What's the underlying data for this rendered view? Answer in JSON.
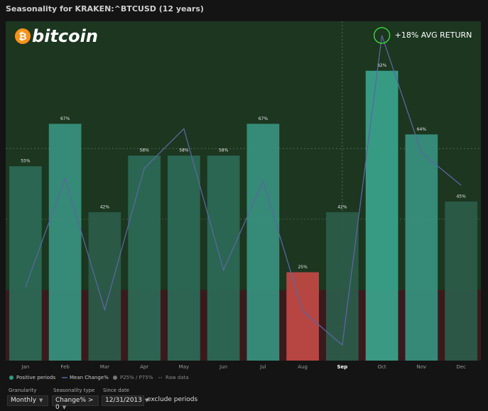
{
  "chart_data": {
    "type": "bar",
    "title": "Seasonality for KRAKEN:^BTCUSD (12 years)",
    "categories": [
      "Jan",
      "Feb",
      "Mar",
      "Apr",
      "May",
      "Jun",
      "Jul",
      "Aug",
      "Sep",
      "Oct",
      "Nov",
      "Dec"
    ],
    "current_category": 8,
    "series": [
      {
        "name": "Positive periods",
        "color": "#2f9a84",
        "values": [
          55,
          67,
          42,
          58,
          58,
          58,
          67,
          25,
          42,
          82,
          64,
          45
        ],
        "value_labels": [
          "55%",
          "67%",
          "42%",
          "58%",
          "58%",
          "58%",
          "67%",
          "25%",
          "42%",
          "82%",
          "64%",
          "45%"
        ],
        "colors": [
          "#2b6a56",
          "#37937f",
          "#2b5c4a",
          "#2b6a56",
          "#2b6a56",
          "#2b6a56",
          "#37937f",
          "#c24944",
          "#2b5c4a",
          "#3aa48c",
          "#37937f",
          "#2b5c4a"
        ]
      },
      {
        "name": "Mean Change%",
        "color": "#5a66a3",
        "axis": "y2",
        "values": [
          0.2,
          7.9,
          -1.4,
          8.6,
          11.4,
          1.4,
          7.7,
          -1.5,
          -3.9,
          18,
          9.7,
          7.4
        ]
      }
    ],
    "legend_extra": [
      "P25% / P75%",
      "Raw data"
    ],
    "annotation": "+18% AVG RETURN",
    "ylim": [
      0,
      96
    ],
    "gridlines": [
      40,
      60
    ],
    "y2lim": [
      -5,
      19
    ]
  },
  "logo": "bitcoin",
  "controls": [
    {
      "label": "Granularity",
      "value": "Monthly"
    },
    {
      "label": "Seasonality type",
      "value": "Change% > 0"
    },
    {
      "label": "Since date",
      "value": "12/31/2013"
    }
  ],
  "exclude_label": "exclude periods"
}
